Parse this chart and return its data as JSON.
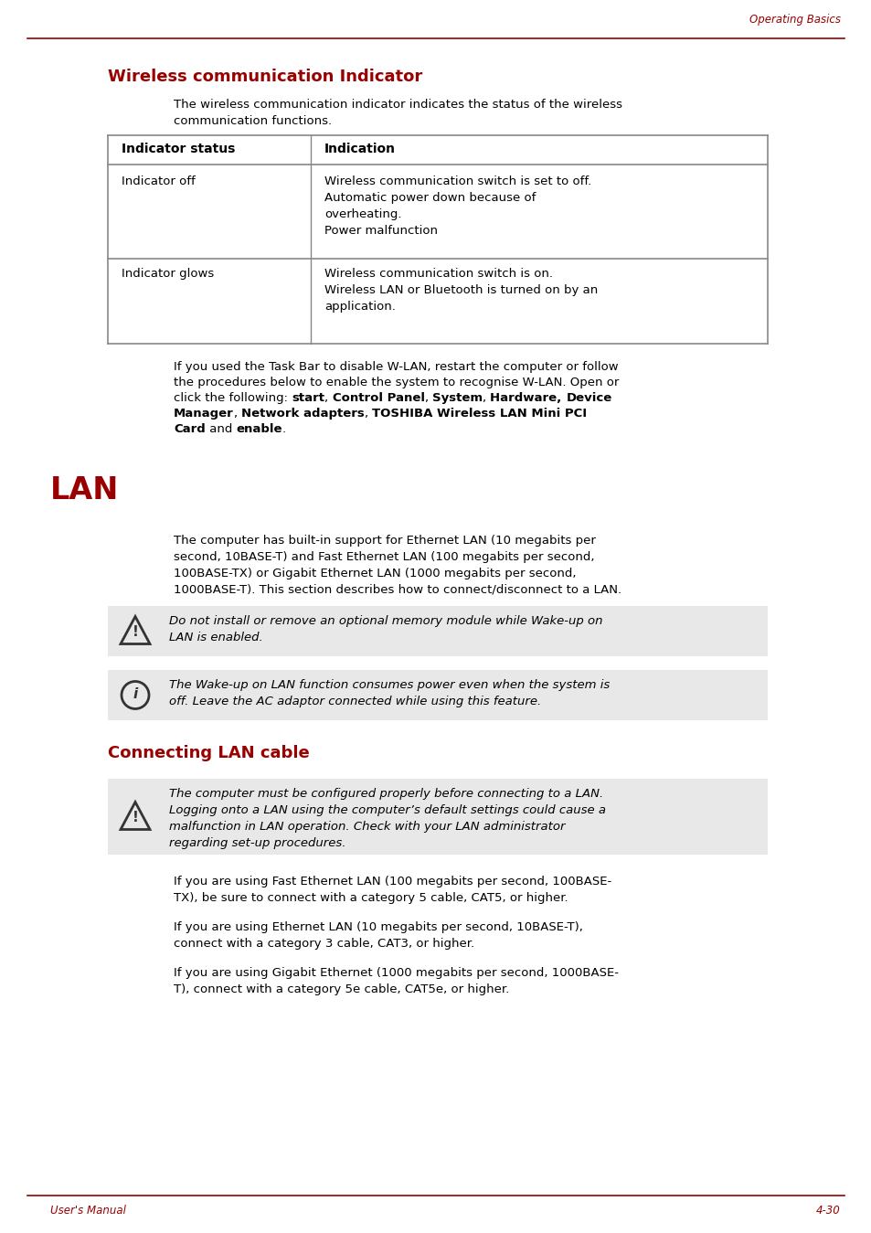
{
  "page_header": "Operating Basics",
  "footer_left": "User's Manual",
  "footer_right": "4-30",
  "bg_color": "#ffffff",
  "section1_title": "Wireless communication Indicator",
  "section1_intro": "The wireless communication indicator indicates the status of the wireless\ncommunication functions.",
  "table_headers": [
    "Indicator status",
    "Indication"
  ],
  "table_row1_left": "Indicator off",
  "table_row1_right": "Wireless communication switch is set to off.\nAutomatic power down because of\noverheating.\nPower malfunction",
  "table_row2_left": "Indicator glows",
  "table_row2_right": "Wireless communication switch is on.\nWireless LAN or Bluetooth is turned on by an\napplication.",
  "section1_body_line1": "If you used the Task Bar to disable W-LAN, restart the computer or follow",
  "section1_body_line2": "the procedures below to enable the system to recognise W-LAN. Open or",
  "section1_body_line3_pre": "click the following: ",
  "section1_body_line3_bold": [
    [
      "start",
      true
    ],
    [
      ", ",
      false
    ],
    [
      "Control Panel",
      true
    ],
    [
      ", ",
      false
    ],
    [
      "System",
      true
    ],
    [
      ", ",
      false
    ],
    [
      "Hardware, ",
      true
    ],
    [
      "Device",
      true
    ]
  ],
  "section1_body_line4_bold": [
    [
      "Manager",
      true
    ],
    [
      ", ",
      false
    ],
    [
      "Network adapters",
      true
    ],
    [
      ", ",
      false
    ],
    [
      "TOSHIBA Wireless LAN Mini PCI",
      true
    ]
  ],
  "section1_body_line5_bold": [
    [
      "Card",
      true
    ],
    [
      " and ",
      false
    ],
    [
      "enable",
      true
    ],
    [
      ".",
      false
    ]
  ],
  "section2_title": "LAN",
  "section2_intro": "The computer has built-in support for Ethernet LAN (10 megabits per\nsecond, 10BASE-T) and Fast Ethernet LAN (100 megabits per second,\n100BASE-TX) or Gigabit Ethernet LAN (1000 megabits per second,\n1000BASE-T). This section describes how to connect/disconnect to a LAN.",
  "warning1": "Do not install or remove an optional memory module while Wake-up on\nLAN is enabled.",
  "info1": "The Wake-up on LAN function consumes power even when the system is\noff. Leave the AC adaptor connected while using this feature.",
  "section3_title": "Connecting LAN cable",
  "warning2": "The computer must be configured properly before connecting to a LAN.\nLogging onto a LAN using the computer’s default settings could cause a\nmalfunction in LAN operation. Check with your LAN administrator\nregarding set-up procedures.",
  "section3_body1": "If you are using Fast Ethernet LAN (100 megabits per second, 100BASE-\nTX), be sure to connect with a category 5 cable, CAT5, or higher.",
  "section3_body2": "If you are using Ethernet LAN (10 megabits per second, 10BASE-T),\nconnect with a category 3 cable, CAT3, or higher.",
  "section3_body3": "If you are using Gigabit Ethernet (1000 megabits per second, 1000BASE-\nT), connect with a category 5e cable, CAT5e, or higher.",
  "red_color": "#990000",
  "black_color": "#000000",
  "table_border_color": "#888888",
  "box_bg_color": "#e8e8e8",
  "icon_color": "#333333"
}
